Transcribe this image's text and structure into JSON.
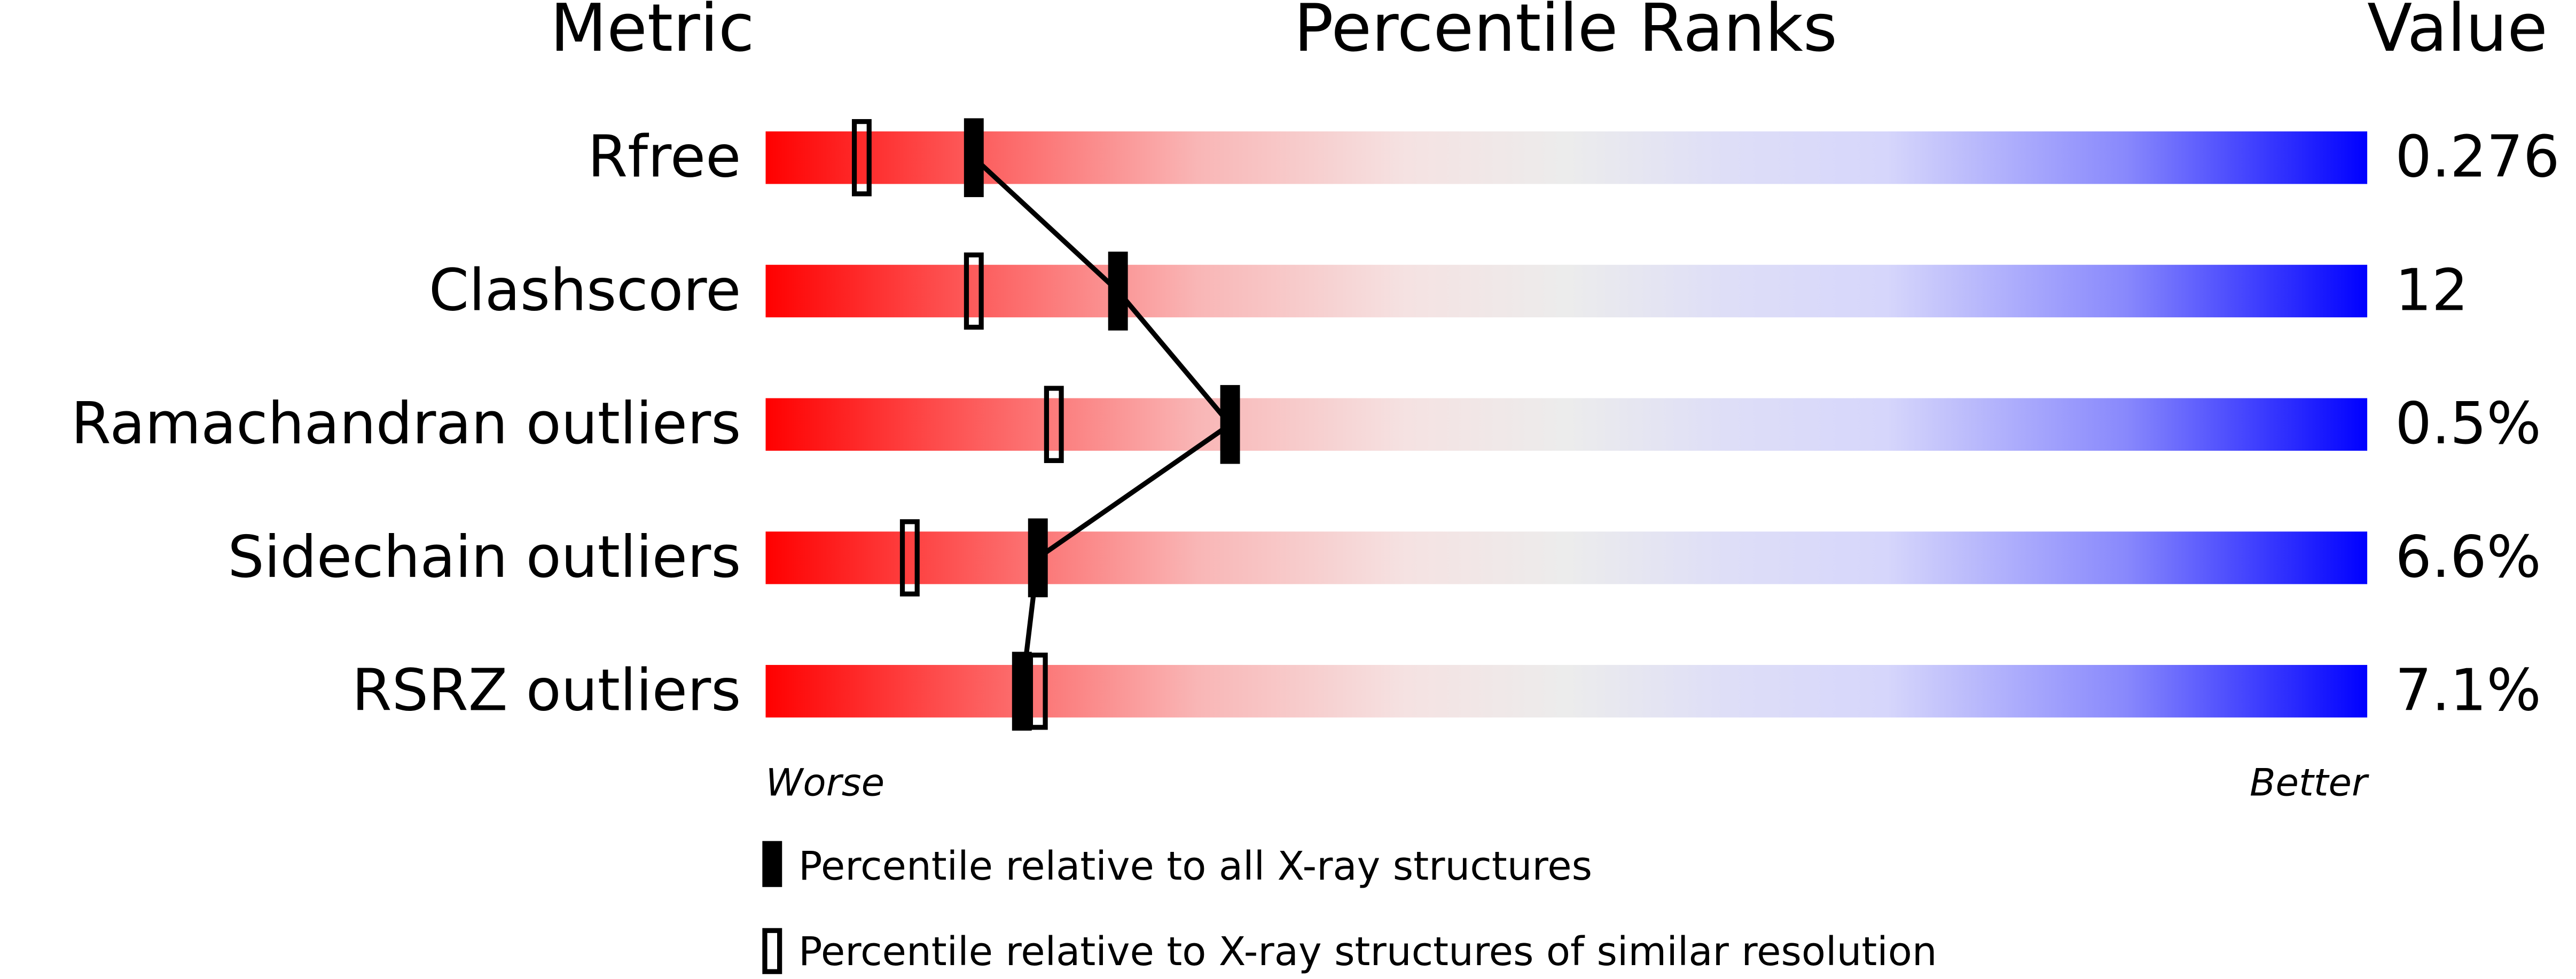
{
  "chart_data": {
    "type": "percentile-slider",
    "headers": [
      "Metric",
      "Percentile Ranks",
      "Value"
    ],
    "categories": [
      "Rfree",
      "Clashscore",
      "Ramachandran outliers",
      "Sidechain outliers",
      "RSRZ outliers"
    ],
    "metric_values": [
      "0.276",
      "12",
      "0.5%",
      "6.6%",
      "7.1%"
    ],
    "series": [
      {
        "name": "Percentile relative to all X-ray structures",
        "color": "#000000",
        "values": [
          13,
          22,
          29,
          17,
          16
        ]
      },
      {
        "name": "Percentile relative to X-ray structures of similar resolution",
        "color": "#000000",
        "values": [
          6,
          13,
          18,
          9,
          17
        ]
      }
    ],
    "xlim": [
      0,
      100
    ],
    "worse_label": "Worse",
    "better_label": "Better"
  }
}
